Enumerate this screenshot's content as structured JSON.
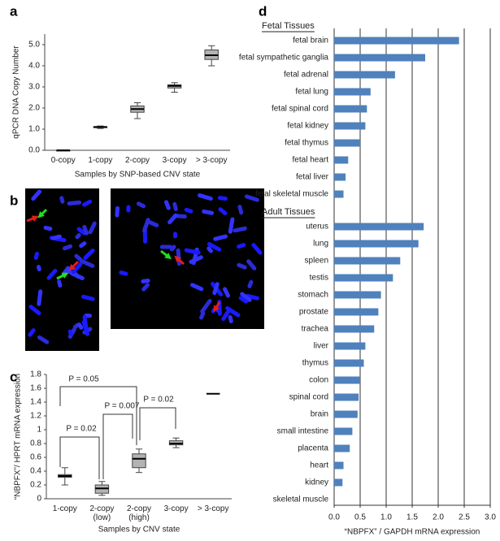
{
  "chart_data": [
    {
      "type": "box",
      "panel": "a",
      "ylabel": "qPCR DNA Copy Number",
      "xlabel": "Samples by SNP-based CNV state",
      "categories": [
        "0-copy",
        "1-copy",
        "2-copy",
        "3-copy",
        "> 3-copy"
      ],
      "boxes": {
        "min": [
          0,
          1.03,
          1.5,
          2.75,
          4.0
        ],
        "q1": [
          0,
          1.07,
          1.8,
          2.95,
          4.3
        ],
        "median": [
          0,
          1.1,
          1.95,
          3.05,
          4.5
        ],
        "q3": [
          0,
          1.12,
          2.1,
          3.1,
          4.75
        ],
        "max": [
          0,
          1.15,
          2.25,
          3.2,
          4.95
        ]
      },
      "color": "#b3b3b3",
      "ylim": [
        0,
        5.5
      ],
      "yticks": [
        {
          "value": 0,
          "label": "0.0"
        },
        {
          "value": 1,
          "label": "1.0"
        },
        {
          "value": 2,
          "label": "2.0"
        },
        {
          "value": 3,
          "label": "3.0"
        },
        {
          "value": 4,
          "label": "4.0"
        },
        {
          "value": 5,
          "label": "5.0"
        }
      ]
    },
    {
      "type": "box",
      "panel": "c",
      "ylabel": "“NBPFX”/ HPRT mRNA expression",
      "xlabel": "Samples by CNV state",
      "categories": [
        "1-copy",
        "2-copy\n(low)",
        "2-copy\n(high)",
        "3-copy",
        "> 3-copy"
      ],
      "boxes": {
        "min": [
          0.2,
          0.05,
          0.38,
          0.74,
          null
        ],
        "q1": [
          0.31,
          0.08,
          0.45,
          0.78,
          null
        ],
        "median": [
          0.33,
          0.15,
          0.58,
          0.8,
          1.52
        ],
        "q3": [
          0.35,
          0.2,
          0.65,
          0.84,
          null
        ],
        "max": [
          0.45,
          0.25,
          0.72,
          0.88,
          null
        ]
      },
      "color": "#b3b3b3",
      "ylim": [
        0,
        1.8
      ],
      "yticks": [
        0,
        0.2,
        0.4,
        0.6,
        0.8,
        1,
        1.2,
        1.4,
        1.6,
        1.8
      ],
      "annotations": [
        "P = 0.05",
        "P = 0.02",
        "P = 0.007",
        "P = 0.02"
      ]
    },
    {
      "type": "bar",
      "orientation": "horizontal",
      "panel": "d",
      "xlabel": "“NBPFX” / GAPDH mRNA expression",
      "color": "#4f81bd",
      "grid": true,
      "groups": [
        {
          "name": "Fetal Tissues",
          "categories": [
            "fetal brain",
            "fetal sympathetic ganglia",
            "fetal adrenal",
            "fetal lung",
            "fetal spinal cord",
            "fetal kidney",
            "fetal thymus",
            "fetal heart",
            "fetal liver",
            "fetal skeletal muscle"
          ],
          "values": [
            2.4,
            1.75,
            1.17,
            0.7,
            0.63,
            0.6,
            0.5,
            0.27,
            0.22,
            0.18
          ]
        },
        {
          "name": "Adult Tissues",
          "categories": [
            "uterus",
            "lung",
            "spleen",
            "testis",
            "stomach",
            "prostate",
            "trachea",
            "liver",
            "thymus",
            "colon",
            "spinal cord",
            "brain",
            "small intestine",
            "placenta",
            "heart",
            "kidney",
            "skeletal muscle"
          ],
          "values": [
            1.72,
            1.62,
            1.27,
            1.13,
            0.9,
            0.85,
            0.77,
            0.6,
            0.57,
            0.5,
            0.47,
            0.45,
            0.35,
            0.3,
            0.18,
            0.16,
            0
          ]
        }
      ],
      "xlim": [
        0,
        3
      ],
      "xticks": [
        {
          "value": 0,
          "label": "0.0"
        },
        0.5,
        {
          "value": 1,
          "label": "1.0"
        },
        1.5,
        {
          "value": 2,
          "label": "2.0"
        },
        2.5,
        {
          "value": 3,
          "label": "3.0"
        }
      ]
    }
  ],
  "images_panel": {
    "panel": "b"
  }
}
